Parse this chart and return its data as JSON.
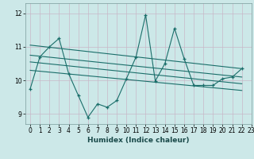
{
  "xlabel": "Humidex (Indice chaleur)",
  "xlim": [
    -0.5,
    23
  ],
  "ylim": [
    8.7,
    12.3
  ],
  "yticks": [
    9,
    10,
    11,
    12
  ],
  "xticks": [
    0,
    1,
    2,
    3,
    4,
    5,
    6,
    7,
    8,
    9,
    10,
    11,
    12,
    13,
    14,
    15,
    16,
    17,
    18,
    19,
    20,
    21,
    22,
    23
  ],
  "bg_color": "#cce8e8",
  "outer_bg": "#cce8e8",
  "line_color": "#1a6e6a",
  "grid_color": "#b8d4d4",
  "series1": {
    "x": [
      0,
      1,
      2,
      3,
      4,
      5,
      6,
      7,
      8,
      9,
      10,
      11,
      12,
      13,
      14,
      15,
      16,
      17,
      18,
      19,
      20,
      21,
      22
    ],
    "y": [
      9.75,
      10.7,
      11.0,
      11.25,
      10.2,
      9.55,
      8.9,
      9.3,
      9.2,
      9.4,
      10.05,
      10.7,
      11.95,
      9.98,
      10.5,
      11.55,
      10.65,
      9.85,
      9.85,
      9.85,
      10.05,
      10.1,
      10.35
    ]
  },
  "env_top": {
    "x": [
      0,
      22
    ],
    "y": [
      11.05,
      10.35
    ]
  },
  "env_mid1": {
    "x": [
      0,
      22
    ],
    "y": [
      10.75,
      10.1
    ]
  },
  "env_mid2": {
    "x": [
      0,
      22
    ],
    "y": [
      10.55,
      9.9
    ]
  },
  "env_bot": {
    "x": [
      0,
      22
    ],
    "y": [
      10.3,
      9.7
    ]
  },
  "figsize": [
    3.2,
    2.0
  ],
  "dpi": 100
}
